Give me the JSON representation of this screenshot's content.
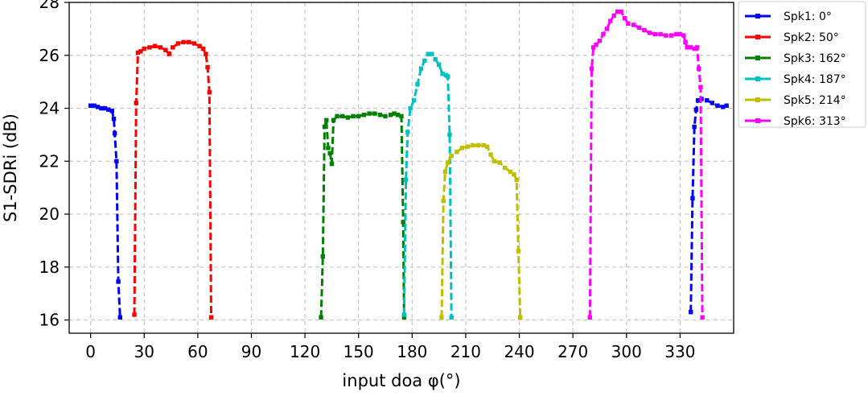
{
  "chart_data": {
    "type": "line",
    "title": "",
    "xlabel": "input doa φ(°)",
    "ylabel": "S1-SDRi (dB)",
    "xlim": [
      -12,
      360
    ],
    "ylim": [
      15.5,
      28
    ],
    "xticks": [
      0,
      30,
      60,
      90,
      120,
      150,
      180,
      210,
      240,
      270,
      300,
      330
    ],
    "yticks": [
      16,
      18,
      20,
      22,
      24,
      26,
      28
    ],
    "grid": true,
    "grid_style": "dashed",
    "line_style": "dashed",
    "marker": "square",
    "legend_position": "outside-right-top",
    "series": [
      {
        "name": "Spk1: 0°",
        "color": "#0000ff",
        "segments": [
          [
            [
              0,
              24.1
            ],
            [
              2,
              24.1
            ],
            [
              4,
              24.05
            ],
            [
              6,
              24.0
            ],
            [
              8,
              24.0
            ],
            [
              10,
              23.95
            ],
            [
              12,
              23.9
            ],
            [
              13,
              23.6
            ],
            [
              13.5,
              23.05
            ],
            [
              14.5,
              22.0
            ],
            [
              15.5,
              17.45
            ],
            [
              16.5,
              16.1
            ]
          ],
          [
            [
              336,
              16.3
            ],
            [
              337,
              20.6
            ],
            [
              338,
              23.3
            ],
            [
              339,
              23.95
            ],
            [
              340,
              24.3
            ],
            [
              342,
              24.35
            ],
            [
              345,
              24.3
            ],
            [
              348,
              24.2
            ],
            [
              351,
              24.1
            ],
            [
              354,
              24.05
            ],
            [
              356,
              24.1
            ]
          ]
        ]
      },
      {
        "name": "Spk2: 50°",
        "color": "#ff0000",
        "segments": [
          [
            [
              24.5,
              16.2
            ],
            [
              25.5,
              24.2
            ],
            [
              26.5,
              26.1
            ],
            [
              28,
              26.15
            ],
            [
              30,
              26.25
            ],
            [
              33,
              26.3
            ],
            [
              36,
              26.35
            ],
            [
              39,
              26.3
            ],
            [
              42,
              26.2
            ],
            [
              44,
              26.05
            ],
            [
              46,
              26.3
            ],
            [
              49,
              26.45
            ],
            [
              52,
              26.5
            ],
            [
              55,
              26.5
            ],
            [
              58,
              26.45
            ],
            [
              61,
              26.35
            ],
            [
              63,
              26.25
            ],
            [
              64.5,
              26.05
            ],
            [
              65.5,
              25.55
            ],
            [
              66.5,
              24.6
            ],
            [
              67.5,
              16.1
            ]
          ]
        ]
      },
      {
        "name": "Spk3: 162°",
        "color": "#008000",
        "segments": [
          [
            [
              129,
              16.1
            ],
            [
              130,
              18.4
            ],
            [
              131,
              23.3
            ],
            [
              132,
              23.55
            ],
            [
              133,
              22.5
            ],
            [
              134,
              22.3
            ],
            [
              135,
              21.9
            ],
            [
              136,
              23.55
            ],
            [
              138,
              23.7
            ],
            [
              141,
              23.7
            ],
            [
              144,
              23.65
            ],
            [
              147,
              23.7
            ],
            [
              150,
              23.7
            ],
            [
              153,
              23.75
            ],
            [
              156,
              23.8
            ],
            [
              159,
              23.8
            ],
            [
              162,
              23.75
            ],
            [
              165,
              23.7
            ],
            [
              168,
              23.75
            ],
            [
              170,
              23.8
            ],
            [
              172,
              23.75
            ],
            [
              174,
              23.7
            ],
            [
              175,
              19.7
            ],
            [
              175.5,
              16.1
            ]
          ]
        ]
      },
      {
        "name": "Spk4: 187°",
        "color": "#00c0c0",
        "segments": [
          [
            [
              175.5,
              16.2
            ],
            [
              176.5,
              21.3
            ],
            [
              177.5,
              23.1
            ],
            [
              179,
              24.0
            ],
            [
              181,
              24.3
            ],
            [
              183,
              24.9
            ],
            [
              185,
              25.5
            ],
            [
              187,
              25.8
            ],
            [
              189,
              26.05
            ],
            [
              191,
              26.05
            ],
            [
              193,
              25.85
            ],
            [
              195,
              25.65
            ],
            [
              197,
              25.3
            ],
            [
              199,
              25.25
            ],
            [
              200,
              25.2
            ],
            [
              201,
              23.0
            ],
            [
              202,
              16.1
            ]
          ]
        ]
      },
      {
        "name": "Spk5: 214°",
        "color": "#bfbf00",
        "segments": [
          [
            [
              196.5,
              16.1
            ],
            [
              197.5,
              20.5
            ],
            [
              198.5,
              21.6
            ],
            [
              200,
              21.95
            ],
            [
              202,
              22.2
            ],
            [
              205,
              22.35
            ],
            [
              208,
              22.5
            ],
            [
              211,
              22.55
            ],
            [
              214,
              22.6
            ],
            [
              217,
              22.6
            ],
            [
              220,
              22.6
            ],
            [
              222,
              22.55
            ],
            [
              224,
              22.25
            ],
            [
              226,
              22.0
            ],
            [
              229,
              21.95
            ],
            [
              232,
              21.75
            ],
            [
              235,
              21.6
            ],
            [
              237,
              21.5
            ],
            [
              238.5,
              21.3
            ],
            [
              239.5,
              18.6
            ],
            [
              240.5,
              16.1
            ]
          ]
        ]
      },
      {
        "name": "Spk6: 313°",
        "color": "#ff00ff",
        "segments": [
          [
            [
              279.5,
              16.1
            ],
            [
              280.5,
              25.5
            ],
            [
              281.5,
              26.3
            ],
            [
              283,
              26.4
            ],
            [
              285,
              26.55
            ],
            [
              287,
              26.8
            ],
            [
              289,
              27.0
            ],
            [
              291,
              27.3
            ],
            [
              293,
              27.5
            ],
            [
              295,
              27.65
            ],
            [
              297,
              27.65
            ],
            [
              299,
              27.4
            ],
            [
              301,
              27.2
            ],
            [
              304,
              27.15
            ],
            [
              307,
              27.05
            ],
            [
              310,
              26.95
            ],
            [
              313,
              26.85
            ],
            [
              316,
              26.8
            ],
            [
              319,
              26.8
            ],
            [
              322,
              26.75
            ],
            [
              325,
              26.75
            ],
            [
              328,
              26.8
            ],
            [
              330,
              26.8
            ],
            [
              332,
              26.75
            ],
            [
              333,
              26.5
            ],
            [
              334,
              26.3
            ],
            [
              336,
              26.3
            ],
            [
              338,
              26.25
            ],
            [
              339.5,
              26.3
            ],
            [
              340.5,
              25.5
            ],
            [
              341.5,
              24.8
            ],
            [
              342.5,
              16.1
            ]
          ]
        ]
      }
    ]
  }
}
